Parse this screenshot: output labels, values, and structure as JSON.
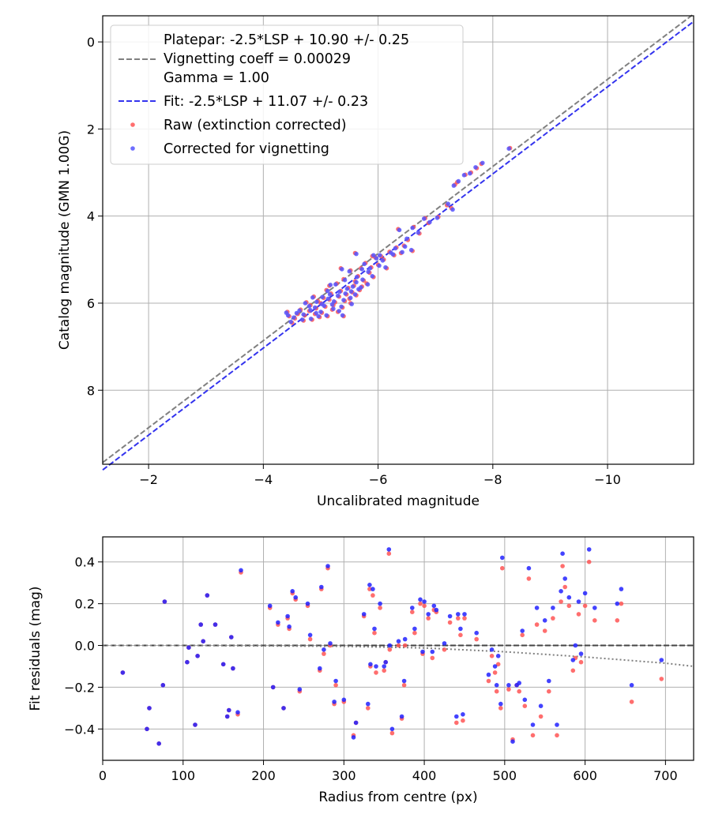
{
  "chart_data": [
    {
      "type": "scatter",
      "xlabel": "Uncalibrated magnitude",
      "ylabel": "Catalog magnitude (GMN 1.00G)",
      "xlim": [
        -1.2,
        -11.5
      ],
      "ylim": [
        9.7,
        -0.6
      ],
      "xticks": [
        -2,
        -4,
        -6,
        -8,
        -10
      ],
      "xtick_labels": [
        "−2",
        "−4",
        "−6",
        "−8",
        "−10"
      ],
      "yticks": [
        0,
        2,
        4,
        6,
        8
      ],
      "ytick_labels": [
        "0",
        "2",
        "4",
        "6",
        "8"
      ],
      "grid": true,
      "legend_location": "top-left",
      "legend": [
        {
          "label": "Platepar: -2.5*LSP + 10.90 +/- 0.25",
          "style": "dashed",
          "color": "#808080"
        },
        {
          "label": "Vignetting coeff = 0.00029",
          "style": "none"
        },
        {
          "label": "Gamma = 1.00",
          "style": "none"
        },
        {
          "label": "Fit: -2.5*LSP + 11.07 +/- 0.23",
          "style": "dashed",
          "color": "#3333ee"
        },
        {
          "label": "Raw (extinction corrected)",
          "style": "marker",
          "color": "#ff5555"
        },
        {
          "label": "Corrected for vignetting",
          "style": "marker",
          "color": "#5555ff"
        }
      ],
      "lines": [
        {
          "name": "Platepar",
          "x": [
            -1.2,
            -11.5
          ],
          "y": [
            9.66,
            -0.64
          ],
          "color": "#808080"
        },
        {
          "name": "Fit",
          "x": [
            -1.2,
            -11.5
          ],
          "y": [
            9.83,
            -0.47
          ],
          "color": "#3333ee"
        }
      ],
      "series": [
        {
          "name": "Raw (extinction corrected)",
          "color": "#ff5555",
          "x": [
            -8.3,
            -7.8,
            -7.72,
            -7.52,
            -7.38,
            -7.34,
            -7.28,
            -7.2,
            -6.88,
            -6.82,
            -6.72,
            -6.62,
            -6.52,
            -6.45,
            -6.4,
            -6.32,
            -6.28,
            -6.2,
            -6.15,
            -6.1,
            -6.05,
            -6.0,
            -5.95,
            -5.92,
            -5.88,
            -5.85,
            -5.8,
            -5.78,
            -5.75,
            -5.72,
            -5.7,
            -5.68,
            -5.65,
            -5.62,
            -5.6,
            -5.58,
            -5.55,
            -5.52,
            -5.5,
            -5.48,
            -5.45,
            -5.42,
            -5.4,
            -5.38,
            -5.35,
            -5.32,
            -5.3,
            -5.28,
            -5.25,
            -5.22,
            -5.2,
            -5.18,
            -5.15,
            -5.12,
            -5.1,
            -5.08,
            -5.05,
            -5.02,
            -5.0,
            -4.98,
            -4.95,
            -4.92,
            -4.9,
            -4.88,
            -4.85,
            -4.82,
            -4.8,
            -4.75,
            -4.72,
            -4.7,
            -4.65,
            -4.6,
            -4.55,
            -4.5,
            -4.45,
            -4.42,
            -5.9,
            -5.6,
            -5.35,
            -5.15,
            -6.35,
            -6.6,
            -7.05,
            -7.62,
            -5.52,
            -5.4
          ],
          "y": [
            2.44,
            2.8,
            2.9,
            3.05,
            3.22,
            3.28,
            3.82,
            3.75,
            4.16,
            4.05,
            4.4,
            4.25,
            4.55,
            4.68,
            4.85,
            4.72,
            4.9,
            4.82,
            5.2,
            5.0,
            4.92,
            5.12,
            4.95,
            5.4,
            5.18,
            5.3,
            5.55,
            5.08,
            5.48,
            5.62,
            5.2,
            5.7,
            5.38,
            5.82,
            5.5,
            5.6,
            5.75,
            5.25,
            5.9,
            5.65,
            5.8,
            5.95,
            5.45,
            6.1,
            5.72,
            5.85,
            6.2,
            5.55,
            5.98,
            6.05,
            6.15,
            5.78,
            5.92,
            6.3,
            5.7,
            6.08,
            5.88,
            6.22,
            6.0,
            6.32,
            5.95,
            6.12,
            6.25,
            5.85,
            6.38,
            6.05,
            6.18,
            5.98,
            6.28,
            6.4,
            6.15,
            6.25,
            6.35,
            6.45,
            6.3,
            6.2,
            4.92,
            4.85,
            5.2,
            5.6,
            4.3,
            4.8,
            4.02,
            3.0,
            6.0,
            6.3
          ]
        },
        {
          "name": "Corrected for vignetting",
          "color": "#5555ff",
          "x": [
            -8.28,
            -7.82,
            -7.7,
            -7.5,
            -7.4,
            -7.32,
            -7.3,
            -7.22,
            -6.9,
            -6.8,
            -6.7,
            -6.6,
            -6.5,
            -6.47,
            -6.42,
            -6.3,
            -6.26,
            -6.22,
            -6.13,
            -6.08,
            -6.03,
            -6.02,
            -5.97,
            -5.9,
            -5.86,
            -5.83,
            -5.82,
            -5.76,
            -5.73,
            -5.7,
            -5.72,
            -5.66,
            -5.63,
            -5.6,
            -5.62,
            -5.56,
            -5.53,
            -5.5,
            -5.52,
            -5.46,
            -5.43,
            -5.4,
            -5.42,
            -5.36,
            -5.33,
            -5.3,
            -5.32,
            -5.26,
            -5.23,
            -5.2,
            -5.22,
            -5.16,
            -5.13,
            -5.1,
            -5.12,
            -5.06,
            -5.03,
            -5.0,
            -5.02,
            -4.96,
            -4.93,
            -4.9,
            -4.92,
            -4.86,
            -4.83,
            -4.8,
            -4.82,
            -4.73,
            -4.7,
            -4.68,
            -4.63,
            -4.58,
            -4.53,
            -4.48,
            -4.43,
            -4.4,
            -5.92,
            -5.62,
            -5.37,
            -5.17,
            -6.37,
            -6.58,
            -7.03,
            -7.6,
            -5.54,
            -5.38
          ],
          "y": [
            2.45,
            2.78,
            2.88,
            3.06,
            3.2,
            3.3,
            3.85,
            3.72,
            4.14,
            4.06,
            4.38,
            4.27,
            4.52,
            4.7,
            4.83,
            4.74,
            4.88,
            4.84,
            5.18,
            5.02,
            4.9,
            5.14,
            4.97,
            5.38,
            5.2,
            5.28,
            5.57,
            5.1,
            5.46,
            5.64,
            5.22,
            5.68,
            5.4,
            5.8,
            5.52,
            5.62,
            5.73,
            5.27,
            5.88,
            5.67,
            5.78,
            5.93,
            5.47,
            6.08,
            5.74,
            5.83,
            6.18,
            5.57,
            5.96,
            6.03,
            6.13,
            5.8,
            5.9,
            6.28,
            5.72,
            6.06,
            5.86,
            6.2,
            6.02,
            6.3,
            5.97,
            6.1,
            6.23,
            5.87,
            6.36,
            6.07,
            6.16,
            6.0,
            6.26,
            6.38,
            6.17,
            6.23,
            6.33,
            6.43,
            6.28,
            6.22,
            4.9,
            4.87,
            5.22,
            5.58,
            4.32,
            4.78,
            4.04,
            3.02,
            6.02,
            6.28
          ]
        }
      ]
    },
    {
      "type": "scatter",
      "xlabel": "Radius from centre (px)",
      "ylabel": "Fit residuals (mag)",
      "xlim": [
        0,
        735
      ],
      "ylim": [
        -0.55,
        0.52
      ],
      "xticks": [
        0,
        100,
        200,
        300,
        400,
        500,
        600,
        700
      ],
      "xtick_labels": [
        "0",
        "100",
        "200",
        "300",
        "400",
        "500",
        "600",
        "700"
      ],
      "yticks": [
        0.4,
        0.2,
        0.0,
        -0.2,
        -0.4
      ],
      "ytick_labels": [
        "0.4",
        "0.2",
        "0.0",
        "−0.2",
        "−0.4"
      ],
      "grid": true,
      "lines": [
        {
          "name": "zero",
          "x": [
            0,
            735
          ],
          "y": [
            0,
            0
          ],
          "style": "dashed",
          "color": "#444444"
        },
        {
          "name": "vignetting",
          "x": [
            0,
            100,
            200,
            300,
            400,
            500,
            600,
            700,
            735
          ],
          "y": [
            0.0,
            0.0,
            -0.002,
            -0.004,
            -0.012,
            -0.03,
            -0.055,
            -0.085,
            -0.1
          ],
          "style": "dotted",
          "color": "#808080"
        }
      ],
      "series": [
        {
          "name": "Raw (extinction corrected)",
          "color": "#ff5555",
          "x": [
            25,
            55,
            58,
            70,
            75,
            77,
            105,
            107,
            115,
            118,
            122,
            125,
            130,
            140,
            150,
            155,
            157,
            160,
            162,
            168,
            172,
            208,
            212,
            218,
            225,
            230,
            232,
            236,
            240,
            245,
            255,
            258,
            270,
            272,
            275,
            280,
            283,
            288,
            290,
            300,
            312,
            315,
            325,
            330,
            332,
            333,
            336,
            338,
            340,
            345,
            350,
            352,
            356,
            357,
            360,
            368,
            372,
            375,
            376,
            385,
            388,
            395,
            398,
            400,
            405,
            410,
            412,
            415,
            425,
            432,
            440,
            442,
            445,
            448,
            450,
            465,
            480,
            484,
            488,
            490,
            492,
            495,
            497,
            505,
            510,
            515,
            518,
            522,
            525,
            530,
            535,
            540,
            545,
            550,
            555,
            560,
            565,
            570,
            572,
            575,
            580,
            585,
            588,
            592,
            595,
            600,
            605,
            612,
            640,
            645,
            658,
            695
          ],
          "y": [
            -0.13,
            -0.4,
            -0.3,
            -0.47,
            -0.19,
            0.21,
            -0.08,
            -0.01,
            -0.38,
            -0.05,
            0.1,
            0.02,
            0.24,
            0.1,
            -0.09,
            -0.34,
            -0.31,
            0.04,
            -0.11,
            -0.33,
            0.35,
            0.18,
            -0.2,
            0.1,
            -0.3,
            0.13,
            0.08,
            0.25,
            0.22,
            -0.22,
            0.19,
            0.03,
            -0.12,
            0.27,
            -0.04,
            0.37,
            0.0,
            -0.28,
            -0.19,
            -0.27,
            -0.43,
            -0.37,
            0.14,
            -0.3,
            0.27,
            -0.1,
            0.24,
            0.06,
            -0.13,
            0.18,
            -0.12,
            -0.08,
            0.44,
            -0.02,
            -0.42,
            -0.0,
            -0.35,
            -0.19,
            0.0,
            0.16,
            0.06,
            0.2,
            -0.04,
            0.19,
            0.13,
            -0.06,
            0.17,
            0.16,
            -0.02,
            0.11,
            -0.37,
            0.13,
            0.05,
            -0.36,
            0.13,
            0.03,
            -0.17,
            -0.05,
            -0.13,
            -0.22,
            -0.09,
            -0.3,
            0.37,
            -0.21,
            -0.45,
            -0.19,
            -0.22,
            0.05,
            -0.29,
            0.32,
            -0.43,
            0.1,
            -0.34,
            0.07,
            -0.22,
            0.13,
            -0.43,
            0.21,
            0.38,
            0.28,
            0.19,
            -0.12,
            -0.06,
            0.15,
            -0.08,
            0.19,
            0.4,
            0.12,
            0.12,
            0.2,
            -0.27,
            -0.16
          ]
        },
        {
          "name": "Corrected for vignetting",
          "color": "#2222ff",
          "x": [
            25,
            55,
            58,
            70,
            75,
            77,
            105,
            107,
            115,
            118,
            122,
            125,
            130,
            140,
            150,
            155,
            157,
            160,
            162,
            168,
            172,
            208,
            212,
            218,
            225,
            230,
            232,
            236,
            240,
            245,
            255,
            258,
            270,
            272,
            275,
            280,
            283,
            288,
            290,
            300,
            312,
            315,
            325,
            330,
            332,
            333,
            336,
            338,
            340,
            345,
            350,
            352,
            356,
            357,
            360,
            368,
            372,
            375,
            376,
            385,
            388,
            395,
            398,
            400,
            405,
            410,
            412,
            415,
            425,
            432,
            440,
            442,
            445,
            448,
            450,
            465,
            480,
            484,
            488,
            490,
            492,
            495,
            497,
            505,
            510,
            515,
            518,
            522,
            525,
            530,
            535,
            540,
            545,
            550,
            555,
            560,
            565,
            570,
            572,
            575,
            580,
            585,
            588,
            592,
            595,
            600,
            605,
            612,
            640,
            645,
            658,
            695
          ],
          "y": [
            -0.13,
            -0.4,
            -0.3,
            -0.47,
            -0.19,
            0.21,
            -0.08,
            -0.01,
            -0.38,
            -0.05,
            0.1,
            0.02,
            0.24,
            0.1,
            -0.09,
            -0.34,
            -0.31,
            0.04,
            -0.11,
            -0.32,
            0.36,
            0.19,
            -0.2,
            0.11,
            -0.3,
            0.14,
            0.09,
            0.26,
            0.23,
            -0.21,
            0.2,
            0.05,
            -0.11,
            0.28,
            -0.02,
            0.38,
            0.01,
            -0.27,
            -0.17,
            -0.26,
            -0.44,
            -0.37,
            0.15,
            -0.28,
            0.29,
            -0.09,
            0.27,
            0.08,
            -0.1,
            0.2,
            -0.1,
            -0.08,
            0.46,
            -0.0,
            -0.4,
            0.02,
            -0.34,
            -0.17,
            0.03,
            0.18,
            0.08,
            0.22,
            -0.03,
            0.21,
            0.15,
            -0.03,
            0.19,
            0.17,
            0.01,
            0.14,
            -0.34,
            0.15,
            0.08,
            -0.33,
            0.15,
            0.06,
            -0.14,
            -0.02,
            -0.1,
            -0.19,
            -0.05,
            -0.28,
            0.42,
            -0.19,
            -0.46,
            -0.19,
            -0.18,
            0.07,
            -0.26,
            0.37,
            -0.38,
            0.18,
            -0.29,
            0.12,
            -0.17,
            0.18,
            -0.38,
            0.26,
            0.44,
            0.32,
            0.23,
            -0.07,
            0.0,
            0.21,
            -0.04,
            0.25,
            0.46,
            0.18,
            0.2,
            0.27,
            -0.19,
            -0.07
          ]
        }
      ]
    }
  ]
}
